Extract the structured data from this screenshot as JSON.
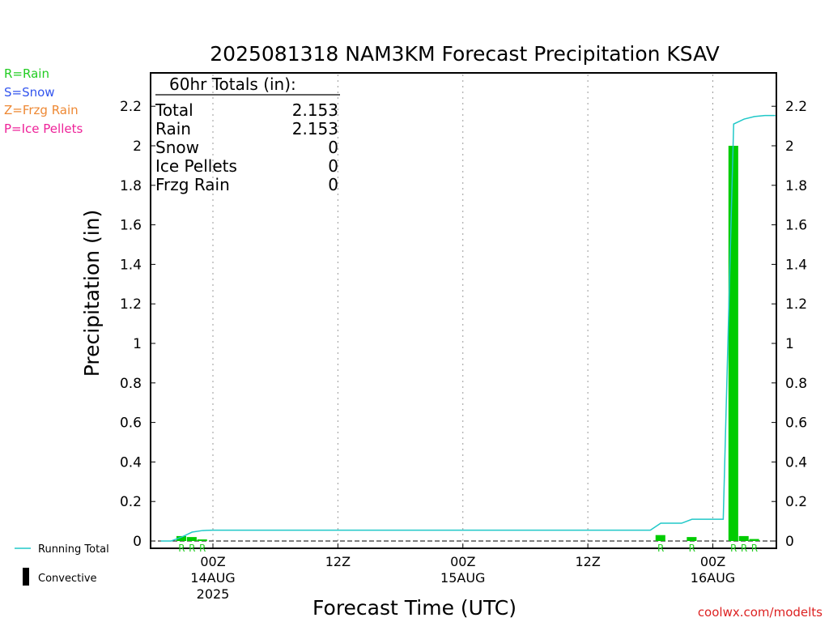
{
  "chart_data": {
    "type": "bar",
    "title": "2025081318 NAM3KM Forecast Precipitation KSAV",
    "ylabel": "Precipitation (in)",
    "xlabel": "Forecast Time (UTC)",
    "ylim": [
      0,
      2.35
    ],
    "yticks": [
      "0",
      "0.2",
      "0.4",
      "0.6",
      "0.8",
      "1",
      "1.2",
      "1.4",
      "1.6",
      "1.8",
      "2",
      "2.2"
    ],
    "x_range_hours": [
      -5,
      55
    ],
    "xticks": [
      {
        "hour": 0,
        "line1": "00Z",
        "line2": "14AUG",
        "line3": "2025"
      },
      {
        "hour": 12,
        "line1": "12Z",
        "line2": "",
        "line3": ""
      },
      {
        "hour": 24,
        "line1": "00Z",
        "line2": "15AUG",
        "line3": ""
      },
      {
        "hour": 36,
        "line1": "12Z",
        "line2": "",
        "line3": ""
      },
      {
        "hour": 48,
        "line1": "00Z",
        "line2": "16AUG",
        "line3": ""
      }
    ],
    "grid": "vertical dotted",
    "bars": [
      {
        "hour": -3,
        "value": 0.025,
        "ptype": "R"
      },
      {
        "hour": -2,
        "value": 0.02,
        "ptype": "R"
      },
      {
        "hour": -1,
        "value": 0.008,
        "ptype": "R"
      },
      {
        "hour": 43,
        "value": 0.03,
        "ptype": "R"
      },
      {
        "hour": 46,
        "value": 0.02,
        "ptype": "R"
      },
      {
        "hour": 50,
        "value": 2.0,
        "ptype": "R"
      },
      {
        "hour": 51,
        "value": 0.025,
        "ptype": "R"
      },
      {
        "hour": 52,
        "value": 0.01,
        "ptype": "R"
      }
    ],
    "running_total": {
      "name": "Running Total",
      "color": "#20c8c8",
      "points": [
        [
          -5,
          0
        ],
        [
          -4,
          0
        ],
        [
          -3,
          0.02
        ],
        [
          -2,
          0.045
        ],
        [
          -1,
          0.053
        ],
        [
          0,
          0.055
        ],
        [
          42,
          0.055
        ],
        [
          43,
          0.09
        ],
        [
          45,
          0.09
        ],
        [
          46,
          0.11
        ],
        [
          49,
          0.11
        ],
        [
          50,
          2.11
        ],
        [
          51,
          2.135
        ],
        [
          52,
          2.148
        ],
        [
          53,
          2.153
        ],
        [
          54,
          2.153
        ]
      ]
    },
    "totals_box": {
      "header": "60hr Totals (in):",
      "rows": [
        {
          "label": "Total",
          "value": "2.153"
        },
        {
          "label": "Rain",
          "value": "2.153"
        },
        {
          "label": "Snow",
          "value": "0"
        },
        {
          "label": "Ice Pellets",
          "value": "0"
        },
        {
          "label": "Frzg Rain",
          "value": "0"
        }
      ]
    },
    "ptype_legend": [
      {
        "text": "R=Rain",
        "color": "#22cc22"
      },
      {
        "text": "S=Snow",
        "color": "#3355ee"
      },
      {
        "text": "Z=Frzg Rain",
        "color": "#ee8833"
      },
      {
        "text": "P=Ice Pellets",
        "color": "#ee2299"
      }
    ],
    "bottom_legend": {
      "running_total_label": "Running Total",
      "convective_label": "Convective"
    },
    "bar_color": "#00cc00",
    "credit": "coolwx.com/modelts",
    "credit_color": "#dd2222"
  }
}
